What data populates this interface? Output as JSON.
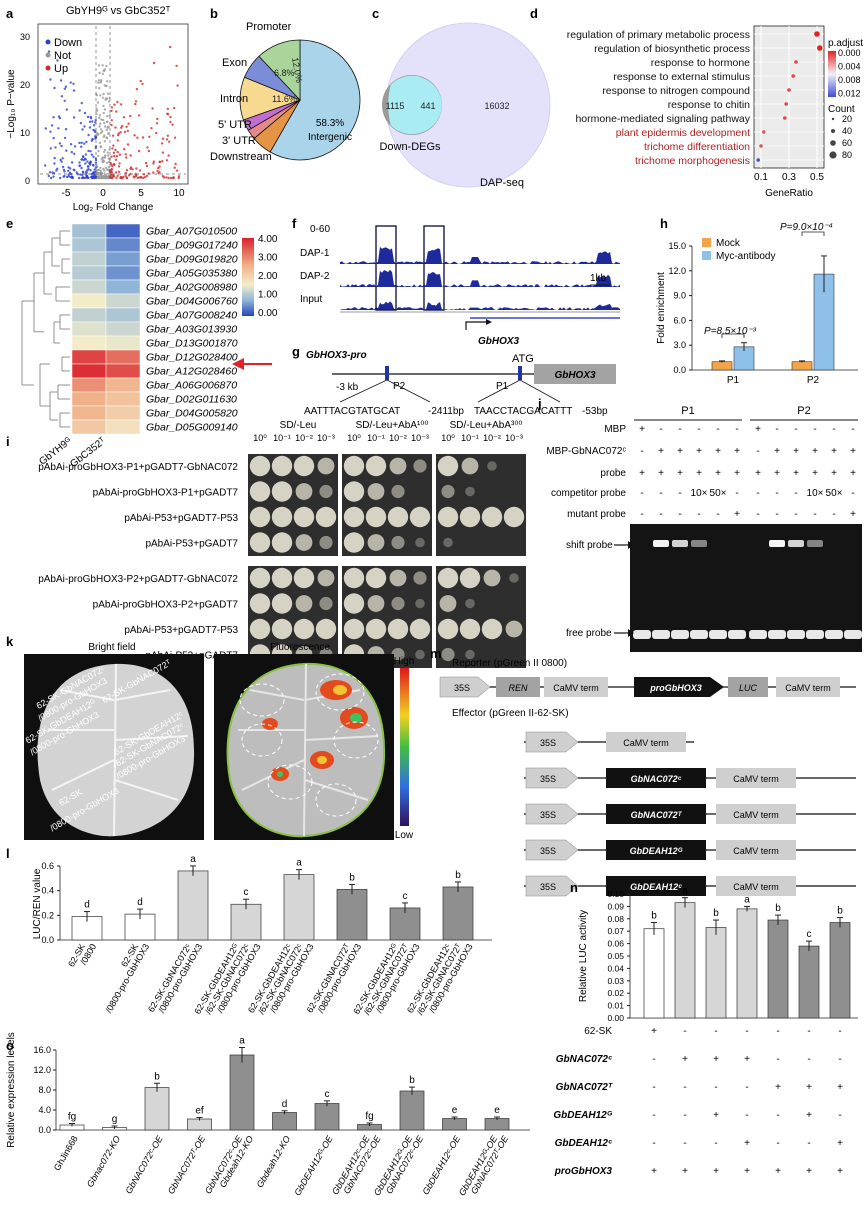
{
  "panels": {
    "a": "a",
    "b": "b",
    "c": "c",
    "d": "d",
    "e": "e",
    "f": "f",
    "g": "g",
    "h": "h",
    "i": "i",
    "j": "j",
    "k": "k",
    "l": "l",
    "m": "m",
    "n": "n",
    "o": "o"
  },
  "panel_a": {
    "title": "GbYH9ᴳ vs GbC352ᵀ",
    "legend": [
      "Down",
      "Not",
      "Up"
    ],
    "colors": {
      "down": "#2b3fd1",
      "not": "#9a9a9a",
      "up": "#d62828"
    },
    "ylabel": "−Log₁₀ P−value",
    "xlabel": "Log₂ Fold Change",
    "xticks": [
      "-5",
      "0",
      "5",
      "10"
    ],
    "yticks": [
      "0",
      "10",
      "20",
      "30"
    ]
  },
  "panel_b": {
    "chart_data": {
      "type": "pie",
      "slices": [
        {
          "name": "Intergenic",
          "value": 58.3,
          "label": "58.3%",
          "color": "#a9d4ea"
        },
        {
          "name": "Downstream",
          "value": 5.6,
          "label": "",
          "color": "#e59345"
        },
        {
          "name": "3' UTR",
          "value": 2.7,
          "label": "",
          "color": "#e5898b"
        },
        {
          "name": "5' UTR",
          "value": 3.0,
          "label": "",
          "color": "#c26ed1"
        },
        {
          "name": "Intron",
          "value": 11.6,
          "label": "11.6%",
          "color": "#f7d990"
        },
        {
          "name": "Exon",
          "value": 6.8,
          "label": "6.8%",
          "color": "#7b8dd6"
        },
        {
          "name": "Promoter",
          "value": 12.0,
          "label": "12.0%",
          "color": "#a9d49a"
        }
      ]
    }
  },
  "panel_c": {
    "left_only": "1115",
    "overlap": "441",
    "right_only": "16032",
    "left_label": "Down-DEGs",
    "right_label": "DAP-seq"
  },
  "panel_d": {
    "chart_data": {
      "type": "scatter",
      "categories": [
        "regulation of primary metabolic process",
        "regulation of biosynthetic process",
        "response to hormone",
        "response to external stimulus",
        "response to nitrogen compound",
        "response to chitin",
        "hormone-mediated signaling pathway",
        "plant epidermis development",
        "trichome differentiation",
        "trichome morphogenesis"
      ],
      "x": [
        0.5,
        0.52,
        0.35,
        0.33,
        0.3,
        0.28,
        0.27,
        0.12,
        0.1,
        0.08
      ],
      "xlabel": "GeneRatio",
      "xticks": [
        "0.1",
        "0.3",
        "0.5"
      ],
      "highlight_rows": [
        7,
        8,
        9
      ],
      "legend_padj_title": "p.adjust",
      "padj_ticks": [
        "0.000",
        "0.004",
        "0.008",
        "0.012"
      ],
      "legend_count_title": "Count",
      "count_ticks": [
        "20",
        "40",
        "60",
        "80"
      ]
    }
  },
  "panel_e": {
    "chart_data": {
      "type": "heatmap",
      "columns": [
        "GbYH9ᴳ",
        "GbC352ᵀ"
      ],
      "rows": [
        "Gbar_A07G010500",
        "Gbar_D09G017240",
        "Gbar_D09G019820",
        "Gbar_A05G035380",
        "Gbar_A02G008980",
        "Gbar_D04G006760",
        "Gbar_A07G008240",
        "Gbar_A03G013930",
        "Gbar_D13G001870",
        "Gbar_D12G028400",
        "Gbar_A12G028460",
        "Gbar_A06G006870",
        "Gbar_D02G011630",
        "Gbar_D04G005820",
        "Gbar_D05G009140"
      ],
      "values": [
        [
          1.2,
          0.3
        ],
        [
          1.3,
          0.6
        ],
        [
          1.5,
          0.8
        ],
        [
          1.4,
          0.7
        ],
        [
          1.6,
          1.0
        ],
        [
          2.0,
          1.6
        ],
        [
          1.5,
          1.3
        ],
        [
          1.8,
          1.6
        ],
        [
          2.0,
          1.9
        ],
        [
          4.0,
          3.6
        ],
        [
          4.2,
          3.9
        ],
        [
          3.3,
          2.9
        ],
        [
          3.0,
          2.7
        ],
        [
          2.9,
          2.5
        ],
        [
          2.6,
          2.2
        ]
      ],
      "scale_ticks": [
        "4.00",
        "3.00",
        "2.00",
        "1.00",
        "0.00"
      ],
      "arrow_row": 10
    }
  },
  "panel_f": {
    "scale": "0-60",
    "tracks": [
      "DAP-1",
      "DAP-2",
      "Input"
    ],
    "scalebar": "1kb",
    "gene": "GbHOX3"
  },
  "panel_g": {
    "title": "GbHOX3-pro",
    "atg": "ATG",
    "gene": "GbHOX3",
    "start": "-3 kb",
    "p2": "P2",
    "p1": "P1",
    "seq2": "AATTTACGTATGCAT",
    "pos2": "-2411bp",
    "seq1": "TAACCTACGACATTT",
    "pos1": "-53bp"
  },
  "panel_h": {
    "chart_data": {
      "type": "bar",
      "categories": [
        "P1",
        "P2"
      ],
      "series": [
        {
          "name": "Mock",
          "values": [
            1.0,
            1.0
          ],
          "color": "#f3a44a"
        },
        {
          "name": "Myc-antibody",
          "values": [
            2.8,
            11.6
          ],
          "color": "#8ec0ea"
        }
      ],
      "errors": [
        [
          0.1,
          0.1
        ],
        [
          0.5,
          2.2
        ]
      ],
      "pvalues": [
        "P=8.5×10⁻³",
        "P=9.0×10⁻⁴"
      ],
      "ylabel": "Fold enrichment",
      "ylim": [
        0,
        15
      ],
      "yticks": [
        "0.0",
        "3.0",
        "6.0",
        "9.0",
        "12.0",
        "15.0"
      ]
    }
  },
  "panel_i": {
    "conditions": [
      "SD/-Leu",
      "SD/-Leu+AbA¹⁰⁰",
      "SD/-Leu+AbA³⁰⁰"
    ],
    "dilutions": [
      "10⁰",
      "10⁻¹",
      "10⁻²",
      "10⁻³"
    ],
    "rows": [
      "pAbAi-proGbHOX3-P1+pGADT7-GbNAC072",
      "pAbAi-proGbHOX3-P1+pGADT7",
      "pAbAi-P53+pGADT7-P53",
      "pAbAi-P53+pGADT7",
      "pAbAi-proGbHOX3-P2+pGADT7-GbNAC072",
      "pAbAi-proGbHOX3-P2+pGADT7",
      "pAbAi-P53+pGADT7-P53",
      "pAbAi-P53+pGADT7"
    ],
    "growth": [
      [
        4,
        4,
        4,
        3,
        4,
        4,
        3,
        2,
        4,
        3,
        1,
        0
      ],
      [
        4,
        4,
        3,
        2,
        4,
        3,
        2,
        0,
        2,
        1,
        0,
        0
      ],
      [
        4,
        4,
        4,
        4,
        4,
        4,
        4,
        4,
        4,
        4,
        4,
        4
      ],
      [
        4,
        4,
        3,
        2,
        4,
        3,
        2,
        1,
        1,
        0,
        0,
        0
      ],
      [
        4,
        4,
        4,
        3,
        4,
        4,
        3,
        2,
        4,
        4,
        3,
        1
      ],
      [
        4,
        4,
        3,
        2,
        4,
        3,
        2,
        1,
        3,
        1,
        0,
        0
      ],
      [
        4,
        4,
        4,
        4,
        4,
        4,
        4,
        4,
        4,
        4,
        4,
        3
      ],
      [
        4,
        4,
        3,
        2,
        4,
        3,
        2,
        1,
        2,
        1,
        0,
        0
      ]
    ]
  },
  "panel_j": {
    "groups": [
      "P1",
      "P2"
    ],
    "row_labels": [
      "MBP",
      "MBP-GbNAC072ᶜ",
      "probe",
      "competitor probe",
      "mutant probe"
    ],
    "rows": [
      [
        "+",
        "-",
        "-",
        "-",
        "-",
        "-",
        "+",
        "-",
        "-",
        "-",
        "-",
        "-"
      ],
      [
        "-",
        "+",
        "+",
        "+",
        "+",
        "+",
        "-",
        "+",
        "+",
        "+",
        "+",
        "+"
      ],
      [
        "+",
        "+",
        "+",
        "+",
        "+",
        "+",
        "+",
        "+",
        "+",
        "+",
        "+",
        "+"
      ],
      [
        "-",
        "-",
        "-",
        "10×",
        "50×",
        "-",
        "-",
        "-",
        "-",
        "10×",
        "50×",
        "-"
      ],
      [
        "-",
        "-",
        "-",
        "-",
        "-",
        "+",
        "-",
        "-",
        "-",
        "-",
        "-",
        "+"
      ]
    ],
    "shift_label": "shift probe",
    "free_label": "free probe",
    "shift": [
      0,
      3,
      2,
      1,
      0,
      0,
      0,
      3,
      2,
      1,
      0,
      0
    ]
  },
  "panel_k": {
    "bright_title": "Bright field",
    "fluor_title": "Fluorescence",
    "high": "High",
    "low": "Low",
    "leaf_labels": [
      "62-SK-GbNAC072ᶜ",
      "/0800-pro-GbHOX3",
      "62-SK-GbNAC072ᵀ",
      "62-SK-GbDEAH12ᴳ",
      "/0800-pro-GbHOX3",
      "62-SK-GbDEAH12ᶜ",
      "/62-SK-GbNAC072ᶜ",
      "/0800-pro-GbHOX3",
      "62-SK",
      "/0800-pro-GbHOX3"
    ]
  },
  "panel_l": {
    "chart_data": {
      "type": "bar",
      "categories": [
        "62-SK /0800",
        "62-SK /0800-pro-GbHOX3",
        "62-SK-GbNAC072ᶜ /0800-pro-GbHOX3",
        "62-SK-GbDEAH12ᴳ /62-SK-GbNAC072ᶜ /0800-pro-GbHOX3",
        "62-SK-GbDEAH12ᶜ /62-SK-GbNAC072ᶜ /0800-pro-GbHOX3",
        "62-SK-GbNAC072ᵀ /0800-pro-GbHOX3",
        "62-SK-GbDEAH12ᴳ /62-SK-GbNAC072ᵀ /0800-pro-GbHOX3",
        "62-SK-GbDEAH12ᶜ /62-SK-GbNAC072ᵀ /0800-pro-GbHOX3"
      ],
      "values": [
        0.19,
        0.21,
        0.56,
        0.29,
        0.53,
        0.41,
        0.26,
        0.43
      ],
      "letters": [
        "d",
        "d",
        "a",
        "c",
        "a",
        "b",
        "c",
        "b"
      ],
      "colors": [
        "#ffffff",
        "#ffffff",
        "#d6d6d6",
        "#d6d6d6",
        "#d6d6d6",
        "#8f8f8f",
        "#8f8f8f",
        "#8f8f8f"
      ],
      "ylabel": "LUC/REN value",
      "ylim": [
        0,
        0.6
      ],
      "yticks": [
        "0.0",
        "0.2",
        "0.4",
        "0.6"
      ]
    }
  },
  "panel_m": {
    "reporter_title": "Reporter (pGreen II 0800)",
    "effector_title": "Effector (pGreen II-62-SK)",
    "reporter": [
      "35S",
      "REN",
      "CaMV term",
      "proGbHOX3",
      "LUC",
      "CaMV term"
    ],
    "effector_promoter": "35S",
    "term": "CaMV term",
    "effectors": [
      "GbNAC072ᶜ",
      "GbNAC072ᵀ",
      "GbDEAH12ᴳ",
      "GbDEAH12ᶜ"
    ]
  },
  "panel_n": {
    "chart_data": {
      "type": "bar",
      "categories": [
        "1",
        "2",
        "3",
        "4",
        "5",
        "6",
        "7"
      ],
      "values": [
        0.072,
        0.093,
        0.073,
        0.088,
        0.079,
        0.058,
        0.077
      ],
      "errors": [
        0.005,
        0.004,
        0.006,
        0.002,
        0.004,
        0.004,
        0.004
      ],
      "letters": [
        "b",
        "a",
        "b",
        "a",
        "b",
        "c",
        "b"
      ],
      "colors": [
        "#ffffff",
        "#d6d6d6",
        "#d6d6d6",
        "#d6d6d6",
        "#8f8f8f",
        "#8f8f8f",
        "#8f8f8f"
      ],
      "ylabel": "Relative LUC activity",
      "ylim": [
        0,
        0.1
      ],
      "yticks": [
        "0.00",
        "0.01",
        "0.02",
        "0.03",
        "0.04",
        "0.05",
        "0.06",
        "0.07",
        "0.08",
        "0.09",
        "0.10"
      ]
    },
    "row_labels": [
      "62-SK",
      "GbNAC072ᶜ",
      "GbNAC072ᵀ",
      "GbDEAH12ᴳ",
      "GbDEAH12ᶜ",
      "proGbHOX3"
    ],
    "matrix": [
      [
        "+",
        "-",
        "-",
        "-",
        "-",
        "-",
        "-"
      ],
      [
        "-",
        "+",
        "+",
        "+",
        "-",
        "-",
        "-"
      ],
      [
        "-",
        "-",
        "-",
        "-",
        "+",
        "+",
        "+"
      ],
      [
        "-",
        "-",
        "+",
        "-",
        "-",
        "+",
        "-"
      ],
      [
        "-",
        "-",
        "-",
        "+",
        "-",
        "-",
        "+"
      ],
      [
        "+",
        "+",
        "+",
        "+",
        "+",
        "+",
        "+"
      ]
    ]
  },
  "panel_o": {
    "chart_data": {
      "type": "bar",
      "categories": [
        "GhJin668",
        "Gbnac072-KO",
        "GbNAC072ᶜ-OE",
        "GbNAC072ᵀ-OE",
        "GbNAC072ᶜ-OE Gbdeah12-KO",
        "Gbdeah12-KO",
        "GbDEAH12ᴳ-OE",
        "GbDEAH12ᶜ-OE GbNAC072ᶜ-OE",
        "GbDEAH12ᴳ-OE GbNAC072ᶜ-OE",
        "GbDEAH12ᶜ-OE",
        "GbDEAH12ᴳ-OE GbNAC072ᵀ-OE"
      ],
      "values": [
        1.0,
        0.5,
        8.5,
        2.2,
        15.0,
        3.5,
        5.3,
        1.1,
        7.8,
        2.3,
        2.3
      ],
      "letters": [
        "fg",
        "g",
        "b",
        "ef",
        "a",
        "d",
        "c",
        "fg",
        "b",
        "e",
        "e"
      ],
      "ylabel": "Relative expression levels",
      "ylim": [
        0,
        16
      ],
      "yticks": [
        "0.0",
        "4.0",
        "8.0",
        "12.0",
        "16.0"
      ]
    }
  }
}
